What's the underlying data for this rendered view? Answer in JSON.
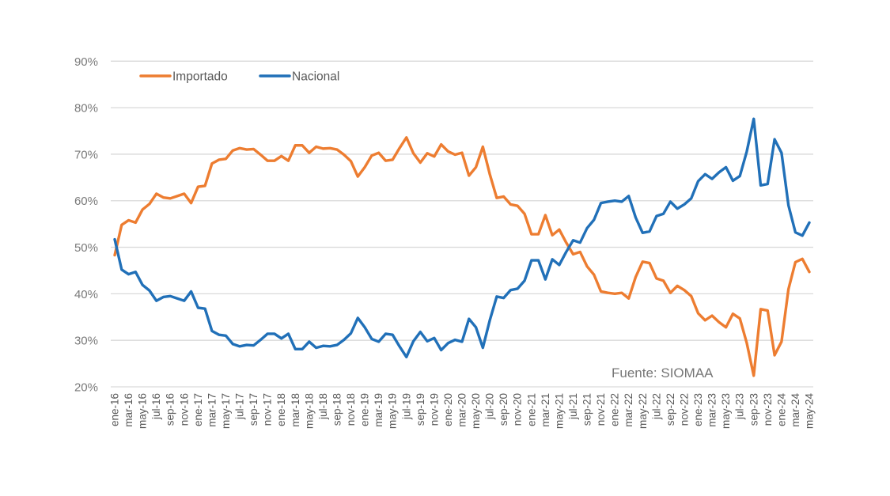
{
  "chart_data": {
    "type": "line",
    "title": "",
    "xlabel": "",
    "ylabel": "",
    "ylim": [
      20,
      90
    ],
    "yticks": [
      20,
      30,
      40,
      50,
      60,
      70,
      80,
      90
    ],
    "ytick_labels": [
      "20%",
      "30%",
      "40%",
      "50%",
      "60%",
      "70%",
      "80%",
      "90%"
    ],
    "grid": true,
    "legend_position": "top-left",
    "x_tick_labels": [
      "ene-16",
      "mar-16",
      "may-16",
      "jul-16",
      "sep-16",
      "nov-16",
      "ene-17",
      "mar-17",
      "may-17",
      "jul-17",
      "sep-17",
      "nov-17",
      "ene-18",
      "mar-18",
      "may-18",
      "jul-18",
      "sep-18",
      "nov-18",
      "ene-19",
      "mar-19",
      "may-19",
      "jul-19",
      "sep-19",
      "nov-19",
      "ene-20",
      "mar-20",
      "may-20",
      "jul-20",
      "sep-20",
      "nov-20",
      "ene-21",
      "mar-21",
      "may-21",
      "jul-21",
      "sep-21",
      "nov-21",
      "ene-22",
      "mar-22",
      "may-22",
      "jul-22",
      "sep-22",
      "nov-22",
      "ene-23",
      "mar-23",
      "may-23",
      "jul-23",
      "sep-23",
      "nov-23",
      "ene-24",
      "mar-24",
      "may-24"
    ],
    "x_months_count": 101,
    "series": [
      {
        "name": "Importado",
        "color": "#ED7D31",
        "values": [
          48.3,
          54.8,
          55.8,
          55.3,
          58.1,
          59.3,
          61.5,
          60.7,
          60.5,
          61.0,
          61.5,
          59.5,
          63.0,
          63.2,
          68.0,
          68.8,
          69.0,
          70.8,
          71.3,
          71.0,
          71.1,
          69.9,
          68.6,
          68.6,
          69.6,
          68.6,
          71.9,
          71.9,
          70.3,
          71.6,
          71.2,
          71.3,
          71.0,
          69.9,
          68.5,
          65.2,
          67.2,
          69.7,
          70.3,
          68.6,
          68.8,
          71.3,
          73.6,
          70.2,
          68.2,
          70.2,
          69.5,
          72.1,
          70.6,
          69.9,
          70.3,
          65.4,
          67.2,
          71.6,
          65.7,
          60.6,
          60.9,
          59.2,
          58.9,
          57.2,
          52.8,
          52.8,
          56.9,
          52.6,
          53.8,
          51.0,
          48.5,
          49.0,
          45.9,
          44.1,
          40.5,
          40.2,
          40.0,
          40.2,
          39.0,
          43.6,
          46.9,
          46.6,
          43.3,
          42.8,
          40.2,
          41.7,
          40.8,
          39.5,
          35.8,
          34.3,
          35.3,
          33.9,
          32.8,
          35.7,
          34.7,
          29.4,
          22.4,
          36.7,
          36.4,
          26.8,
          29.7,
          41.0,
          46.8,
          47.5,
          44.7
        ]
      },
      {
        "name": "Nacional",
        "color": "#2170B8",
        "values": [
          51.7,
          45.2,
          44.2,
          44.7,
          41.9,
          40.7,
          38.5,
          39.3,
          39.5,
          39.0,
          38.5,
          40.5,
          37.0,
          36.8,
          32.0,
          31.2,
          31.0,
          29.2,
          28.7,
          29.0,
          28.9,
          30.1,
          31.4,
          31.4,
          30.4,
          31.4,
          28.1,
          28.1,
          29.7,
          28.4,
          28.8,
          28.7,
          29.0,
          30.1,
          31.5,
          34.8,
          32.8,
          30.3,
          29.7,
          31.4,
          31.2,
          28.7,
          26.4,
          29.8,
          31.8,
          29.8,
          30.5,
          27.9,
          29.4,
          30.1,
          29.7,
          34.6,
          32.8,
          28.4,
          34.3,
          39.4,
          39.1,
          40.8,
          41.1,
          42.8,
          47.2,
          47.2,
          43.1,
          47.4,
          46.2,
          49.0,
          51.5,
          51.0,
          54.1,
          55.9,
          59.5,
          59.8,
          60.0,
          59.8,
          61.0,
          56.4,
          53.1,
          53.4,
          56.7,
          57.2,
          59.8,
          58.3,
          59.2,
          60.5,
          64.2,
          65.7,
          64.7,
          66.1,
          67.2,
          64.3,
          65.3,
          70.6,
          77.6,
          63.3,
          63.6,
          73.2,
          70.3,
          59.0,
          53.2,
          52.5,
          55.3
        ]
      }
    ],
    "annotation": "Fuente: SIOMAA"
  }
}
